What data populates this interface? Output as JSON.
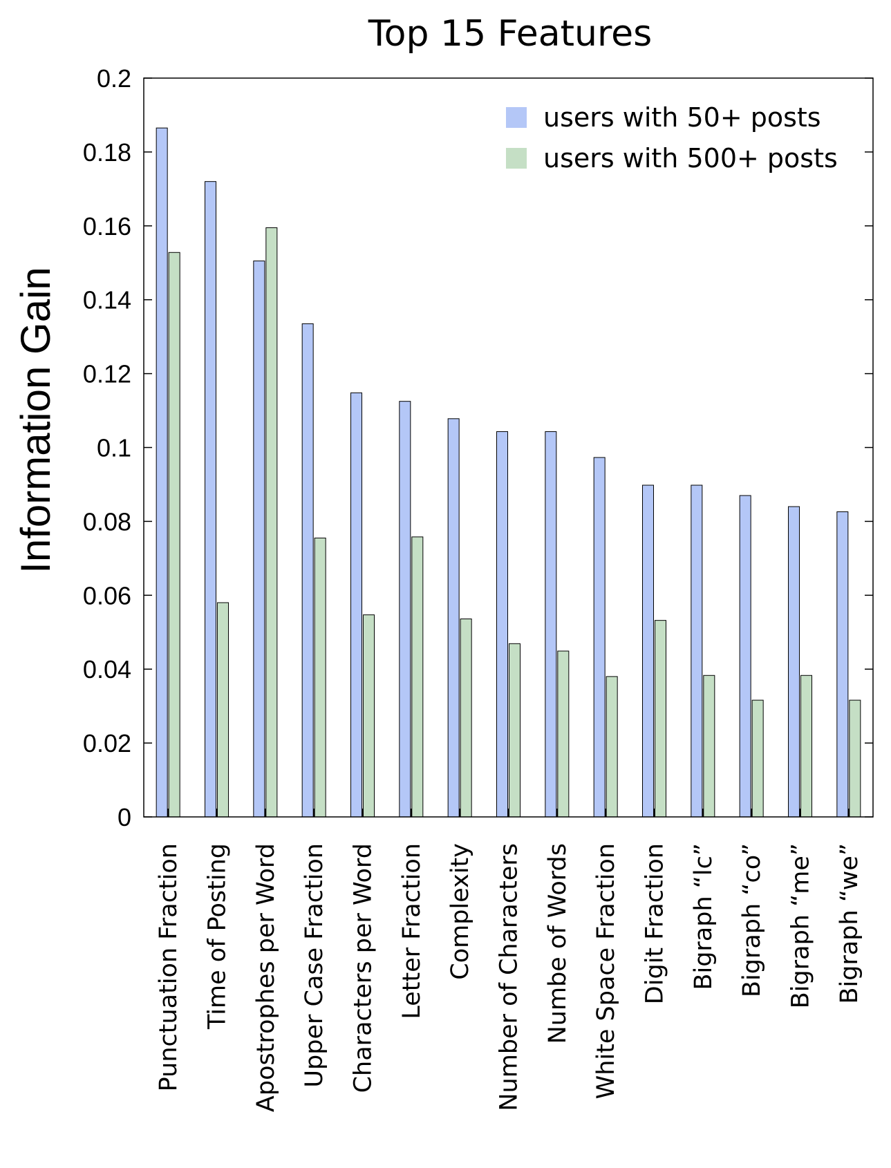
{
  "chart_data": {
    "type": "bar",
    "title": "Top 15 Features",
    "xlabel": "",
    "ylabel": "Information Gain",
    "ylim": [
      0,
      0.2
    ],
    "yticks": [
      "0",
      "0.02",
      "0.04",
      "0.06",
      "0.08",
      "0.1",
      "0.12",
      "0.14",
      "0.16",
      "0.18",
      "0.2"
    ],
    "legend_position": "top-right",
    "grid": false,
    "categories": [
      "Punctuation Fraction",
      "Time of Posting",
      "Apostrophes per Word",
      "Upper Case Fraction",
      "Characters per Word",
      "Letter Fraction",
      "Complexity",
      "Number of Characters",
      "Numbe of Words",
      "White Space Fraction",
      "Digit Fraction",
      "Bigraph “lc”",
      "Bigraph “co”",
      "Bigraph “me”",
      "Bigraph “we”"
    ],
    "series": [
      {
        "name": "users with 50+ posts",
        "color": "#b4c7f7",
        "values": [
          0.1865,
          0.172,
          0.1505,
          0.1335,
          0.1148,
          0.1125,
          0.1078,
          0.1043,
          0.1043,
          0.0973,
          0.0898,
          0.0898,
          0.087,
          0.084,
          0.0826
        ]
      },
      {
        "name": "users with 500+ posts",
        "color": "#c5dfc5",
        "values": [
          0.1528,
          0.058,
          0.1595,
          0.0755,
          0.0547,
          0.0758,
          0.0536,
          0.0469,
          0.0449,
          0.038,
          0.0532,
          0.0383,
          0.0316,
          0.0383,
          0.0316
        ]
      }
    ]
  }
}
